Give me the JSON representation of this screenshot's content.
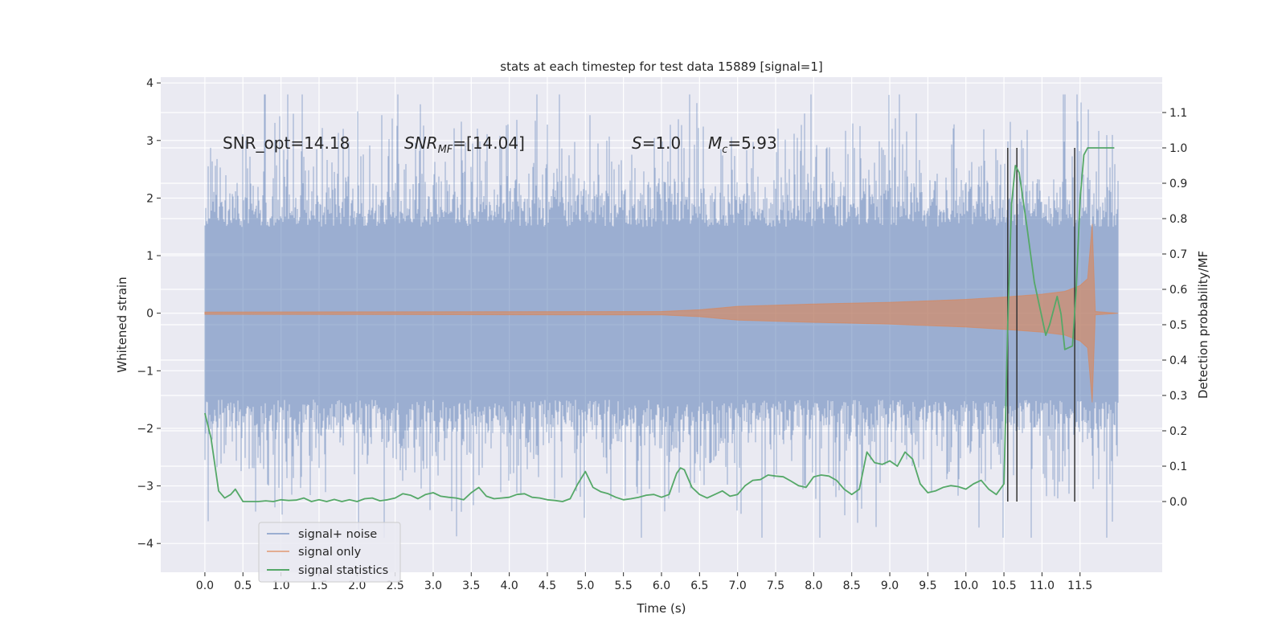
{
  "chart_data": {
    "type": "line",
    "title": "stats at each timestep for test data 15889 [signal=1]",
    "xlabel": "Time (s)",
    "ylabel_left": "Whitened strain",
    "ylabel_right": "Detection probability/MF",
    "xlim": [
      -0.58,
      12.58
    ],
    "ylim_left": [
      -4.5,
      4.1
    ],
    "ylim_right": [
      -0.2,
      1.2
    ],
    "x_ticks": [
      0.0,
      0.5,
      1.0,
      1.5,
      2.0,
      2.5,
      3.0,
      3.5,
      4.0,
      4.5,
      5.0,
      5.5,
      6.0,
      6.5,
      7.0,
      7.5,
      8.0,
      8.5,
      9.0,
      9.5,
      10.0,
      10.5,
      11.0,
      11.5
    ],
    "x_tick_labels": [
      "0.0",
      "0.5",
      "1.0",
      "1.5",
      "2.0",
      "2.5",
      "3.0",
      "3.5",
      "4.0",
      "4.5",
      "5.0",
      "5.5",
      "6.0",
      "6.5",
      "7.0",
      "7.5",
      "8.0",
      "8.5",
      "9.0",
      "9.5",
      "10.0",
      "10.5",
      "11.0",
      "11.5"
    ],
    "y_ticks_left": [
      4,
      3,
      2,
      1,
      0,
      -1,
      -2,
      -3,
      -4
    ],
    "y_tick_labels_left": [
      "4",
      "3",
      "2",
      "1",
      "0",
      "−1",
      "−2",
      "−3",
      "−4"
    ],
    "y_ticks_right": [
      1.1,
      1.0,
      0.9,
      0.8,
      0.7,
      0.6,
      0.5,
      0.4,
      0.3,
      0.2,
      0.1,
      0.0
    ],
    "y_tick_labels_right": [
      "1.1",
      "1.0",
      "0.9",
      "0.8",
      "0.7",
      "0.6",
      "0.5",
      "0.4",
      "0.3",
      "0.2",
      "0.1",
      "0.0"
    ],
    "grid": true,
    "legend_position": "lower-left",
    "series": [
      {
        "name": "signal+ noise",
        "color": "#4c72b0",
        "axis": "left",
        "description_points": "noise-dominated band, roughly ±1.7 with spikes to about ±3.7",
        "x_range": [
          0.0,
          12.0
        ]
      },
      {
        "name": "signal only",
        "color": "#dd8452",
        "axis": "left",
        "envelope": {
          "x": [
            0.0,
            6.0,
            6.5,
            7.0,
            8.0,
            9.0,
            10.0,
            10.5,
            11.0,
            11.3,
            11.5,
            11.6,
            11.66,
            11.7,
            12.0
          ],
          "amp": [
            0.02,
            0.03,
            0.06,
            0.12,
            0.16,
            0.19,
            0.24,
            0.28,
            0.33,
            0.38,
            0.48,
            0.6,
            1.55,
            0.03,
            0.0
          ]
        }
      },
      {
        "name": "signal statistics",
        "color": "#55a868",
        "axis": "right",
        "x": [
          0.0,
          0.08,
          0.18,
          0.26,
          0.34,
          0.4,
          0.5,
          0.6,
          0.7,
          0.8,
          0.9,
          1.0,
          1.1,
          1.2,
          1.3,
          1.4,
          1.5,
          1.6,
          1.7,
          1.8,
          1.9,
          2.0,
          2.1,
          2.2,
          2.3,
          2.4,
          2.5,
          2.6,
          2.7,
          2.8,
          2.9,
          3.0,
          3.1,
          3.2,
          3.3,
          3.4,
          3.5,
          3.6,
          3.7,
          3.8,
          3.9,
          4.0,
          4.1,
          4.2,
          4.3,
          4.4,
          4.5,
          4.6,
          4.7,
          4.8,
          4.9,
          5.0,
          5.1,
          5.2,
          5.3,
          5.4,
          5.5,
          5.6,
          5.7,
          5.8,
          5.9,
          6.0,
          6.1,
          6.2,
          6.25,
          6.3,
          6.4,
          6.5,
          6.6,
          6.7,
          6.8,
          6.9,
          7.0,
          7.1,
          7.2,
          7.3,
          7.4,
          7.5,
          7.6,
          7.7,
          7.8,
          7.9,
          8.0,
          8.1,
          8.2,
          8.3,
          8.4,
          8.5,
          8.6,
          8.7,
          8.8,
          8.9,
          9.0,
          9.1,
          9.2,
          9.3,
          9.4,
          9.5,
          9.6,
          9.7,
          9.8,
          9.9,
          10.0,
          10.1,
          10.2,
          10.3,
          10.4,
          10.5,
          10.55,
          10.6,
          10.65,
          10.7,
          10.8,
          10.9,
          11.0,
          11.05,
          11.1,
          11.2,
          11.25,
          11.3,
          11.4,
          11.45,
          11.5,
          11.55,
          11.6,
          11.7,
          11.8,
          11.9,
          11.95
        ],
        "y": [
          0.25,
          0.18,
          0.03,
          0.01,
          0.02,
          0.035,
          0.0,
          0.0,
          0.0,
          0.002,
          0.0,
          0.005,
          0.003,
          0.004,
          0.01,
          0.0,
          0.005,
          0.0,
          0.006,
          0.0,
          0.005,
          0.0,
          0.008,
          0.01,
          0.002,
          0.005,
          0.01,
          0.022,
          0.018,
          0.008,
          0.02,
          0.025,
          0.015,
          0.012,
          0.01,
          0.005,
          0.025,
          0.04,
          0.015,
          0.008,
          0.01,
          0.012,
          0.02,
          0.022,
          0.012,
          0.01,
          0.005,
          0.003,
          0.0,
          0.008,
          0.05,
          0.085,
          0.04,
          0.028,
          0.022,
          0.012,
          0.005,
          0.008,
          0.012,
          0.018,
          0.02,
          0.012,
          0.02,
          0.08,
          0.095,
          0.09,
          0.04,
          0.02,
          0.01,
          0.02,
          0.03,
          0.015,
          0.02,
          0.045,
          0.06,
          0.062,
          0.075,
          0.072,
          0.07,
          0.058,
          0.045,
          0.04,
          0.07,
          0.075,
          0.072,
          0.06,
          0.035,
          0.02,
          0.035,
          0.14,
          0.11,
          0.105,
          0.115,
          0.1,
          0.14,
          0.12,
          0.05,
          0.025,
          0.03,
          0.04,
          0.045,
          0.042,
          0.035,
          0.05,
          0.06,
          0.035,
          0.02,
          0.05,
          0.5,
          0.84,
          0.95,
          0.93,
          0.78,
          0.62,
          0.52,
          0.47,
          0.5,
          0.58,
          0.53,
          0.43,
          0.44,
          0.6,
          0.85,
          0.98,
          1.0,
          1.0,
          1.0,
          1.0,
          1.0
        ]
      }
    ],
    "vlines": {
      "color": "#333333",
      "x": [
        10.55,
        10.67,
        11.43
      ],
      "y_range": [
        0.0,
        1.0
      ]
    },
    "annotations": [
      {
        "text_plain": "SNR_opt=14.18",
        "x": 0.2,
        "y": 3.0
      },
      {
        "text_italic": "SNR",
        "text_sub": "MF",
        "text_plain": "=[14.04]",
        "x": 2.6,
        "y": 3.0
      },
      {
        "text_italic": "S",
        "text_plain": "=1.0",
        "x": 5.6,
        "y": 3.0
      },
      {
        "text_italic": "M",
        "text_sub": "c",
        "text_plain": "=5.93",
        "x": 6.6,
        "y": 3.0
      }
    ]
  }
}
